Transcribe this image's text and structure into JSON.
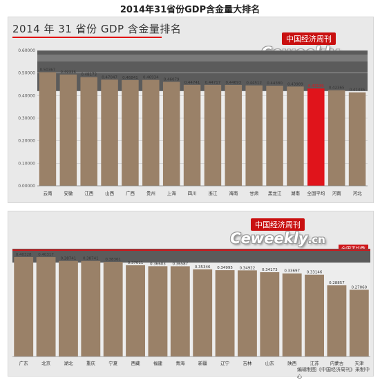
{
  "page_title": "2014年31省份GDP含金量大排名",
  "chart_title": "2014 年 31 省份 GDP 含金量排名",
  "brand": {
    "cn": "中国经济周刊",
    "en": "Ceweekly",
    "tld": ".cn"
  },
  "legend": {
    "average_label": "全国平均数"
  },
  "credit": "编辑制图《中国经济周刊》采制中心",
  "colors": {
    "bar": "#9a8168",
    "highlight": "#e0141b",
    "average_line": "#d0161a",
    "grid_band": "#555555"
  },
  "chart_data": [
    {
      "type": "bar",
      "categories": [
        "云南",
        "安徽",
        "江西",
        "山西",
        "广西",
        "贵州",
        "上海",
        "四川",
        "浙江",
        "海南",
        "甘肃",
        "黑龙江",
        "湖南",
        "全国平均",
        "河南",
        "河北"
      ],
      "values": [
        0.50367,
        0.49335,
        0.48173,
        0.47047,
        0.46841,
        0.46934,
        0.46079,
        0.44741,
        0.44717,
        0.44693,
        0.44512,
        0.4438,
        0.43989,
        0.43139,
        0.42365,
        0.41435
      ],
      "value_labels": [
        "0.50367",
        "0.49335",
        "0.48173",
        "0.47047",
        "0.46841",
        "0.46934",
        "0.46079",
        "0.44741",
        "0.44717",
        "0.44693",
        "0.44512",
        "0.44380",
        "0.43989",
        "0.43139",
        "0.42365",
        "0.41435"
      ],
      "highlight_category": "全国平均",
      "y_ticks": [
        "0.00000",
        "0.10000",
        "0.20000",
        "0.30000",
        "0.40000",
        "0.50000",
        "0.60000"
      ],
      "ylim": [
        0,
        0.6
      ]
    },
    {
      "type": "bar",
      "categories": [
        "广东",
        "北京",
        "湖北",
        "重庆",
        "宁夏",
        "西藏",
        "福建",
        "青海",
        "新疆",
        "辽宁",
        "吉林",
        "山东",
        "陕西",
        "江苏",
        "内蒙古",
        "天津"
      ],
      "values": [
        0.40328,
        0.40317,
        0.38741,
        0.38741,
        0.38361,
        0.37011,
        0.36603,
        0.36587,
        0.35346,
        0.34995,
        0.34922,
        0.34173,
        0.33697,
        0.33146,
        0.28857,
        0.2706
      ],
      "value_labels": [
        "0.40328",
        "0.40317",
        "0.38741",
        "0.38741",
        "0.38361",
        "0.37011",
        "0.36603",
        "0.36587",
        "0.35346",
        "0.34995",
        "0.34922",
        "0.34173",
        "0.33697",
        "0.33146",
        "0.28857",
        "0.27060"
      ],
      "average_value": 0.43139,
      "ylim": [
        0,
        0.43139
      ]
    }
  ]
}
